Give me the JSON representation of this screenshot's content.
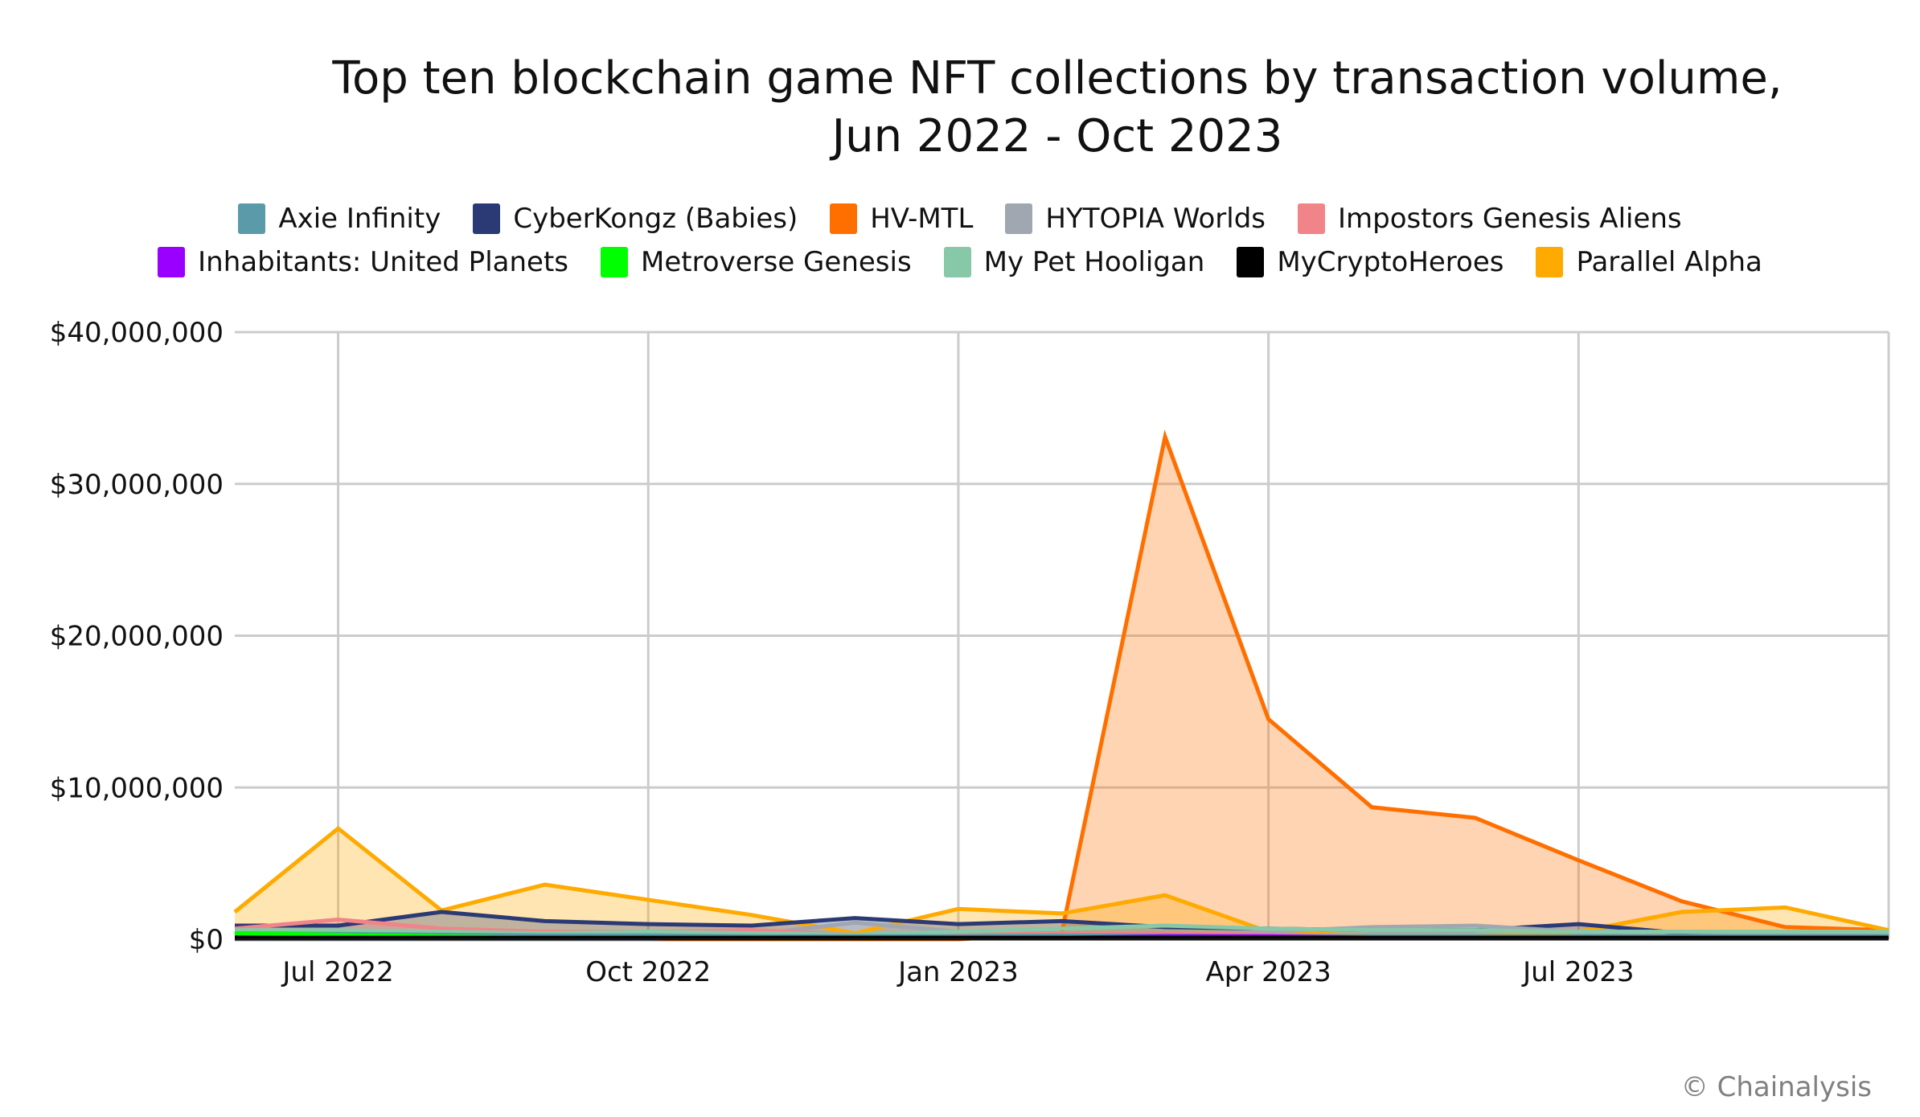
{
  "chart_data": {
    "type": "area",
    "title": "Top ten blockchain game NFT collections by transaction volume,",
    "subtitle": "Jun 2022 - Oct 2023",
    "xlabel": "",
    "ylabel": "",
    "x": [
      "Jun 2022",
      "Jul 2022",
      "Aug 2022",
      "Sep 2022",
      "Oct 2022",
      "Nov 2022",
      "Dec 2022",
      "Jan 2023",
      "Feb 2023",
      "Mar 2023",
      "Apr 2023",
      "May 2023",
      "Jun 2023",
      "Jul 2023",
      "Aug 2023",
      "Sep 2023",
      "Oct 2023"
    ],
    "x_tick_labels": [
      "Jul 2022",
      "Oct 2022",
      "Jan 2023",
      "Apr 2023",
      "Jul 2023"
    ],
    "x_tick_indices": [
      1,
      4,
      7,
      10,
      13
    ],
    "ylim": [
      0,
      40000000
    ],
    "y_ticks": [
      0,
      10000000,
      20000000,
      30000000,
      40000000
    ],
    "y_tick_labels": [
      "$0",
      "$10,000,000",
      "$20,000,000",
      "$30,000,000",
      "$40,000,000"
    ],
    "grid": true,
    "legend_position": "top",
    "series": [
      {
        "name": "Axie Infinity",
        "color": "#5b9aa9",
        "values": [
          400000,
          350000,
          300000,
          250000,
          250000,
          200000,
          200000,
          200000,
          250000,
          250000,
          200000,
          200000,
          200000,
          200000,
          200000,
          200000,
          200000
        ]
      },
      {
        "name": "CyberKongz (Babies)",
        "color": "#2b3a75",
        "values": [
          900000,
          900000,
          1800000,
          1200000,
          1000000,
          900000,
          1400000,
          1000000,
          1200000,
          800000,
          700000,
          600000,
          600000,
          1000000,
          400000,
          400000,
          400000
        ]
      },
      {
        "name": "HV-MTL",
        "color": "#ff6f00",
        "values": [
          0,
          0,
          0,
          0,
          0,
          0,
          0,
          0,
          400000,
          33100000,
          14500000,
          8700000,
          8000000,
          5200000,
          2500000,
          800000,
          600000
        ]
      },
      {
        "name": "HYTOPIA Worlds",
        "color": "#a0a7b1",
        "values": [
          0,
          0,
          0,
          0,
          0,
          300000,
          1100000,
          500000,
          400000,
          300000,
          500000,
          800000,
          900000,
          500000,
          500000,
          400000,
          400000
        ]
      },
      {
        "name": "Impostors Genesis Aliens",
        "color": "#f08488",
        "values": [
          700000,
          1300000,
          700000,
          500000,
          500000,
          600000,
          300000,
          300000,
          400000,
          400000,
          300000,
          200000,
          200000,
          200000,
          200000,
          200000,
          200000
        ]
      },
      {
        "name": "Inhabitants: United Planets",
        "color": "#9900ff",
        "values": [
          300000,
          300000,
          200000,
          100000,
          100000,
          100000,
          100000,
          100000,
          100000,
          200000,
          200000,
          100000,
          100000,
          100000,
          100000,
          100000,
          100000
        ]
      },
      {
        "name": "Metroverse Genesis",
        "color": "#00ff00",
        "values": [
          400000,
          300000,
          200000,
          100000,
          100000,
          100000,
          50000,
          50000,
          50000,
          50000,
          50000,
          50000,
          50000,
          50000,
          50000,
          50000,
          50000
        ]
      },
      {
        "name": "My Pet Hooligan",
        "color": "#86c8a8",
        "values": [
          600000,
          600000,
          500000,
          400000,
          500000,
          400000,
          300000,
          500000,
          700000,
          900000,
          700000,
          600000,
          600000,
          500000,
          500000,
          500000,
          500000
        ]
      },
      {
        "name": "MyCryptoHeroes",
        "color": "#000000",
        "values": [
          100000,
          100000,
          100000,
          100000,
          100000,
          100000,
          100000,
          100000,
          100000,
          100000,
          100000,
          100000,
          100000,
          100000,
          100000,
          100000,
          100000
        ]
      },
      {
        "name": "Parallel Alpha",
        "color": "#ffaa00",
        "values": [
          1800000,
          7300000,
          1900000,
          3600000,
          2600000,
          1600000,
          400000,
          2000000,
          1700000,
          2900000,
          500000,
          200000,
          200000,
          500000,
          1800000,
          2100000,
          600000
        ]
      }
    ]
  },
  "credit": "© Chainalysis"
}
